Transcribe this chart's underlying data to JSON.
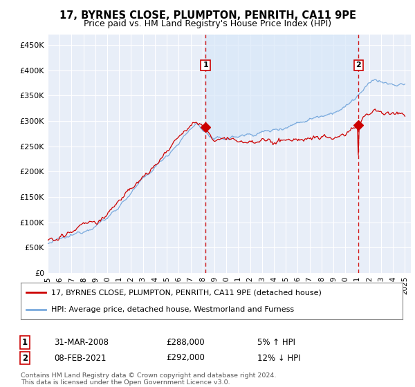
{
  "title": "17, BYRNES CLOSE, PLUMPTON, PENRITH, CA11 9PE",
  "subtitle": "Price paid vs. HM Land Registry's House Price Index (HPI)",
  "ylim": [
    0,
    470000
  ],
  "yticks": [
    0,
    50000,
    100000,
    150000,
    200000,
    250000,
    300000,
    350000,
    400000,
    450000
  ],
  "xstart_year": 1995,
  "xend_year": 2025,
  "sale1_price": 288000,
  "sale1_date_str": "31-MAR-2008",
  "sale1_price_str": "£288,000",
  "sale1_hpi_str": "5% ↑ HPI",
  "sale2_price": 292000,
  "sale2_date_str": "08-FEB-2021",
  "sale2_price_str": "£292,000",
  "sale2_hpi_str": "12% ↓ HPI",
  "sale1_year": 2008.25,
  "sale2_year": 2021.1,
  "line1_color": "#cc0000",
  "line2_color": "#7aaadd",
  "fill_color": "#d8e8f8",
  "background_color": "#e8eef8",
  "grid_color": "#ffffff",
  "legend1": "17, BYRNES CLOSE, PLUMPTON, PENRITH, CA11 9PE (detached house)",
  "legend2": "HPI: Average price, detached house, Westmorland and Furness",
  "footer": "Contains HM Land Registry data © Crown copyright and database right 2024.\nThis data is licensed under the Open Government Licence v3.0."
}
